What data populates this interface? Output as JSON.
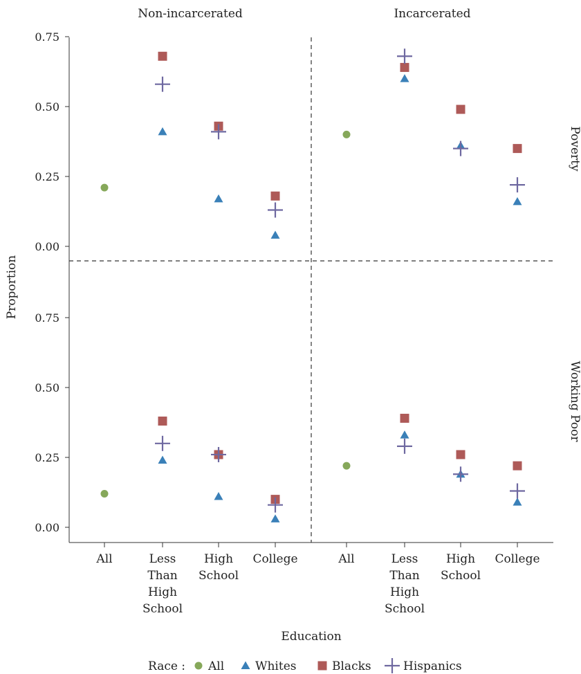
{
  "chart_data": {
    "type": "scatter",
    "facets": {
      "columns": [
        "Non-incarcerated",
        "Incarcerated"
      ],
      "rows": [
        "Poverty",
        "Working Poor"
      ]
    },
    "categories": [
      [
        "All"
      ],
      [
        "Less",
        "Than",
        "High",
        "School"
      ],
      [
        "High",
        "School"
      ],
      [
        "College"
      ]
    ],
    "category_keys": [
      "All",
      "Less Than High School",
      "High School",
      "College"
    ],
    "ylabel": "Proportion",
    "xlabel": "Education",
    "ylim": [
      -0.05,
      0.75
    ],
    "yticks": [
      "0.00",
      "0.25",
      "0.50",
      "0.75"
    ],
    "legend": {
      "title": "Race :",
      "position": "bottom",
      "entries": [
        {
          "name": "All",
          "shape": "circle",
          "color": "#86a85a"
        },
        {
          "name": "Whites",
          "shape": "triangle",
          "color": "#3a80b8"
        },
        {
          "name": "Blacks",
          "shape": "square",
          "color": "#ae5a58"
        },
        {
          "name": "Hispanics",
          "shape": "plus",
          "color": "#6e68a0"
        }
      ]
    },
    "panels": [
      {
        "row": 0,
        "col": 0,
        "series": {
          "All": [
            0.21,
            null,
            null,
            null
          ],
          "Whites": [
            null,
            0.41,
            0.17,
            0.04
          ],
          "Blacks": [
            null,
            0.68,
            0.43,
            0.18
          ],
          "Hispanics": [
            null,
            0.58,
            0.41,
            0.13
          ]
        }
      },
      {
        "row": 0,
        "col": 1,
        "series": {
          "All": [
            0.4,
            null,
            null,
            null
          ],
          "Whites": [
            null,
            0.6,
            0.36,
            0.16
          ],
          "Blacks": [
            null,
            0.64,
            0.49,
            0.35
          ],
          "Hispanics": [
            null,
            0.68,
            0.35,
            0.22
          ]
        }
      },
      {
        "row": 1,
        "col": 0,
        "series": {
          "All": [
            0.12,
            null,
            null,
            null
          ],
          "Whites": [
            null,
            0.24,
            0.11,
            0.03
          ],
          "Blacks": [
            null,
            0.38,
            0.26,
            0.1
          ],
          "Hispanics": [
            null,
            0.3,
            0.26,
            0.08
          ]
        }
      },
      {
        "row": 1,
        "col": 1,
        "series": {
          "All": [
            0.22,
            null,
            null,
            null
          ],
          "Whites": [
            null,
            0.33,
            0.19,
            0.09
          ],
          "Blacks": [
            null,
            0.39,
            0.26,
            0.22
          ],
          "Hispanics": [
            null,
            0.29,
            0.19,
            0.13
          ]
        }
      }
    ]
  }
}
